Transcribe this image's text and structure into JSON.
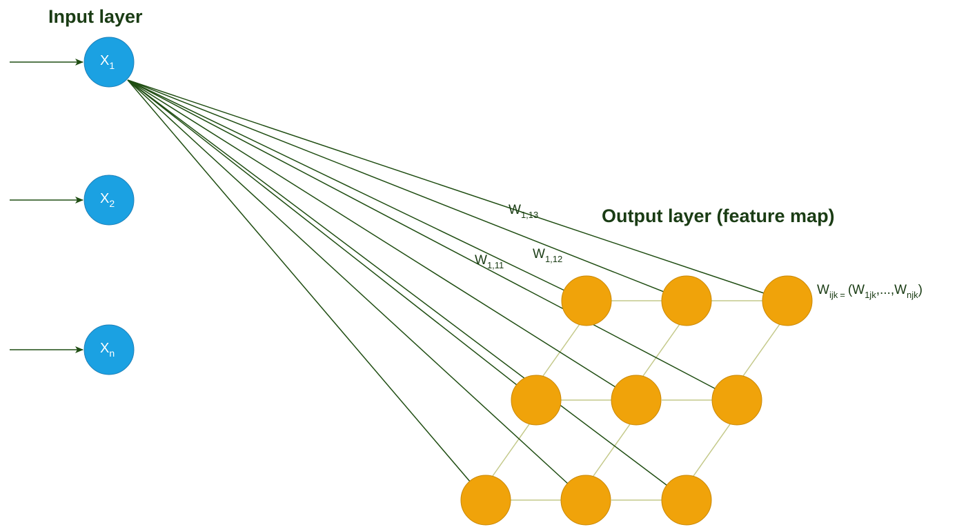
{
  "labels": {
    "input_layer": "Input layer",
    "output_layer": "Output layer (feature map)"
  },
  "input_nodes": [
    {
      "base": "X",
      "sub": "1"
    },
    {
      "base": "X",
      "sub": "2"
    },
    {
      "base": "X",
      "sub": "n"
    }
  ],
  "weights": {
    "w13": {
      "base": "W",
      "sub": "1,13"
    },
    "w12": {
      "base": "W",
      "sub": "1,12"
    },
    "w11": {
      "base": "W",
      "sub": "1,11"
    }
  },
  "formula": {
    "w": "W",
    "w_sub": "ijk",
    "eq": "=",
    "open": "(W",
    "first_sub": "1jk",
    "sep": ",...,W",
    "last_sub": "njk",
    "close": ")"
  },
  "colors": {
    "input_node": "#1ba1e2",
    "output_node": "#f0a30a",
    "connection": "#1f4d12",
    "grid": "#c4c98a",
    "title": "#1a3c14"
  }
}
